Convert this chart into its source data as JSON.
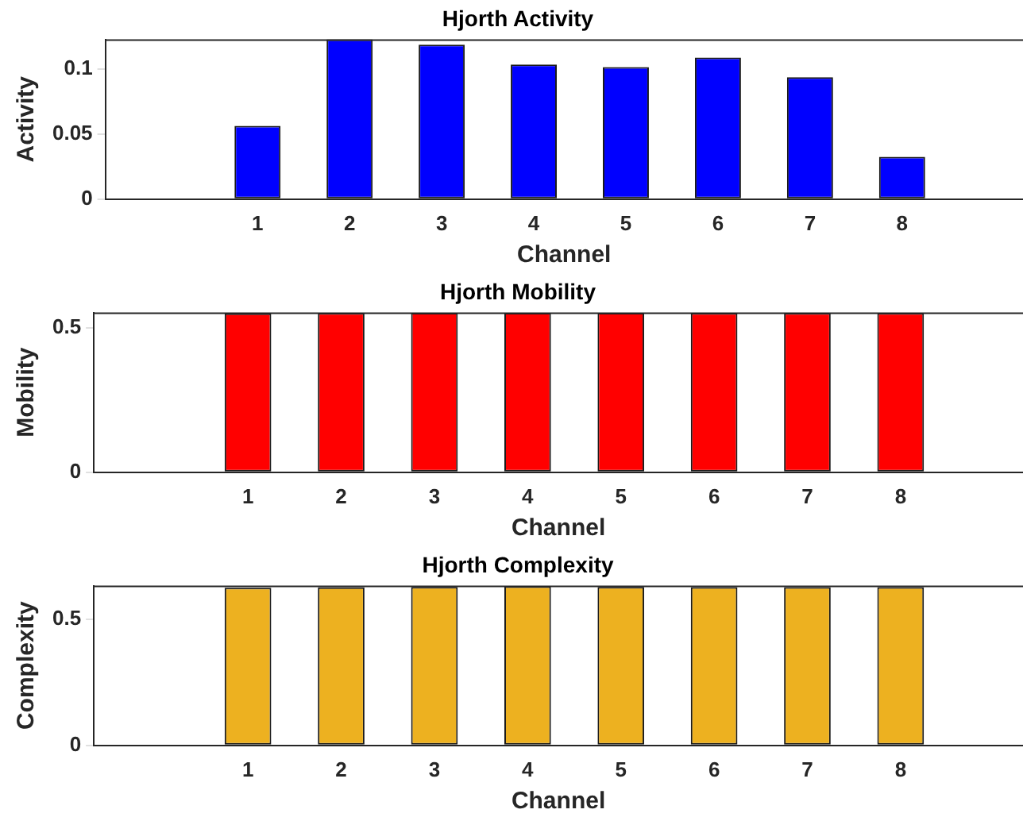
{
  "chart_data": [
    {
      "type": "bar",
      "title": "Hjorth Activity",
      "xlabel": "Channel",
      "ylabel": "Activity",
      "categories": [
        "1",
        "2",
        "3",
        "4",
        "5",
        "6",
        "7",
        "8"
      ],
      "values": [
        0.0565,
        0.123,
        0.119,
        0.1036,
        0.1016,
        0.109,
        0.0938,
        0.0326
      ],
      "color": "#0000ff",
      "ylim": [
        0,
        0.123
      ],
      "yticks": [
        0,
        0.05,
        0.1
      ],
      "grid": false
    },
    {
      "type": "bar",
      "title": "Hjorth Mobility",
      "xlabel": "Channel",
      "ylabel": "Mobility",
      "categories": [
        "1",
        "2",
        "3",
        "4",
        "5",
        "6",
        "7",
        "8"
      ],
      "values": [
        0.549,
        0.55,
        0.551,
        0.551,
        0.551,
        0.55,
        0.55,
        0.55
      ],
      "color": "#ff0000",
      "ylim": [
        0,
        0.552
      ],
      "yticks": [
        0,
        0.5
      ],
      "grid": false
    },
    {
      "type": "bar",
      "title": "Hjorth Complexity",
      "xlabel": "Channel",
      "ylabel": "Complexity",
      "categories": [
        "1",
        "2",
        "3",
        "4",
        "5",
        "6",
        "7",
        "8"
      ],
      "values": [
        0.626,
        0.627,
        0.629,
        0.631,
        0.629,
        0.628,
        0.628,
        0.628
      ],
      "color": "#edb120",
      "ylim": [
        0,
        0.634
      ],
      "yticks": [
        0,
        0.5
      ],
      "grid": false
    }
  ]
}
